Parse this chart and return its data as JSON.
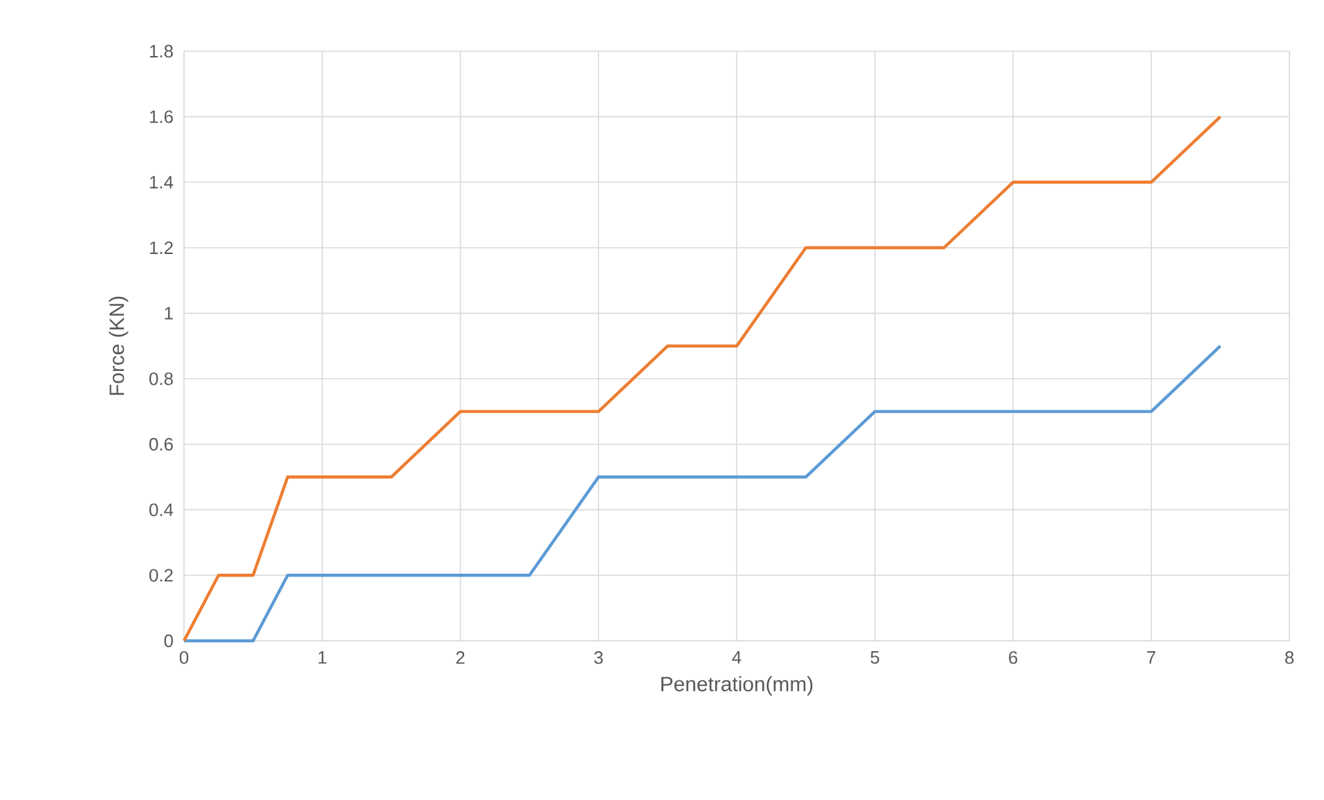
{
  "chart_data": {
    "type": "line",
    "xlabel": "Penetration(mm)",
    "ylabel": "Force (KN)",
    "x": [
      0,
      0.25,
      0.5,
      0.75,
      1,
      1.5,
      2,
      2.5,
      3,
      3.5,
      4,
      4.5,
      5,
      5.5,
      6,
      6.5,
      7,
      7.5
    ],
    "series": [
      {
        "color": "#5b9bd5",
        "values": [
          0,
          0,
          0,
          0.2,
          0.2,
          0.2,
          0.2,
          0.2,
          0.5,
          0.5,
          0.5,
          0.5,
          0.7,
          0.7,
          0.7,
          0.7,
          0.7,
          0.9
        ]
      },
      {
        "color": "#ed7d31",
        "values": [
          0,
          0.2,
          0.2,
          0.5,
          0.5,
          0.5,
          0.7,
          0.7,
          0.7,
          0.9,
          0.9,
          1.2,
          1.2,
          1.2,
          1.4,
          1.4,
          1.4,
          1.6
        ]
      }
    ],
    "xlim": [
      0,
      8
    ],
    "xticks": [
      0,
      1,
      2,
      3,
      4,
      5,
      6,
      7,
      8
    ],
    "ylim": [
      0,
      1.8
    ],
    "yticks": [
      0,
      0.2,
      0.4,
      0.6,
      0.8,
      1,
      1.2,
      1.4,
      1.6,
      1.8
    ],
    "grid": true,
    "legend": false,
    "marker": "none",
    "line_style": "solid"
  }
}
